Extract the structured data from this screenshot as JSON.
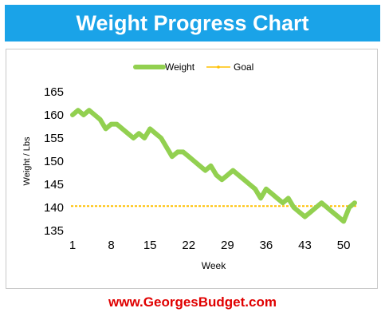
{
  "banner": {
    "title": "Weight Progress Chart",
    "color": "#1aa3e8"
  },
  "footer": {
    "link_text": "www.GeorgesBudget.com",
    "color": "#e00000"
  },
  "chart_data": {
    "type": "line",
    "ylabel": "Weight / Lbs",
    "xlabel": "Week",
    "ylim": [
      135,
      165
    ],
    "y_ticks": [
      135,
      140,
      145,
      150,
      155,
      160,
      165
    ],
    "x_ticks": [
      1,
      8,
      15,
      22,
      29,
      36,
      43,
      50
    ],
    "legend_position": "top-center",
    "grid": false,
    "series": [
      {
        "name": "Weight",
        "color": "#92d050",
        "x": [
          1,
          2,
          3,
          4,
          5,
          6,
          7,
          8,
          9,
          10,
          11,
          12,
          13,
          14,
          15,
          16,
          17,
          18,
          19,
          20,
          21,
          22,
          23,
          24,
          25,
          26,
          27,
          28,
          29,
          30,
          31,
          32,
          33,
          34,
          35,
          36,
          37,
          38,
          39,
          40,
          41,
          42,
          43,
          44,
          45,
          46,
          47,
          48,
          49,
          50,
          51,
          52
        ],
        "values": [
          160,
          161,
          160,
          161,
          160,
          159,
          157,
          158,
          158,
          157,
          156,
          155,
          156,
          155,
          157,
          156,
          155,
          153,
          151,
          152,
          152,
          151,
          150,
          149,
          148,
          149,
          147,
          146,
          147,
          148,
          147,
          146,
          145,
          144,
          142,
          144,
          143,
          142,
          141,
          142,
          140,
          139,
          138,
          139,
          140,
          141,
          140,
          139,
          138,
          137,
          140,
          141
        ]
      },
      {
        "name": "Goal",
        "color": "#ffc000",
        "value": 140.3
      }
    ]
  }
}
